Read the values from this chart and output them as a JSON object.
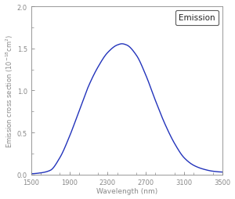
{
  "title": "Emission",
  "xlabel": "Wavelength (nm)",
  "ylabel": "Emission cross section ($10^{-18}$cm$^2$)",
  "xlim": [
    1500,
    3500
  ],
  "ylim": [
    0.0,
    2.0
  ],
  "xticks": [
    1500,
    1900,
    2300,
    2700,
    3100,
    3500
  ],
  "yticks": [
    0.0,
    0.5,
    1.0,
    1.5,
    2.0
  ],
  "ytick_labels": [
    "0.0",
    "0.5",
    "1.0",
    "1.5",
    "2.0"
  ],
  "line_color": "#2233bb",
  "peak_wavelength": 2450,
  "peak_value": 1.55,
  "shoulder_wavelength": 1900,
  "shoulder_value": 0.45,
  "background_color": "#ffffff",
  "legend_label": "Emission",
  "tick_color": "#888888",
  "spine_color": "#888888",
  "label_color": "#888888"
}
